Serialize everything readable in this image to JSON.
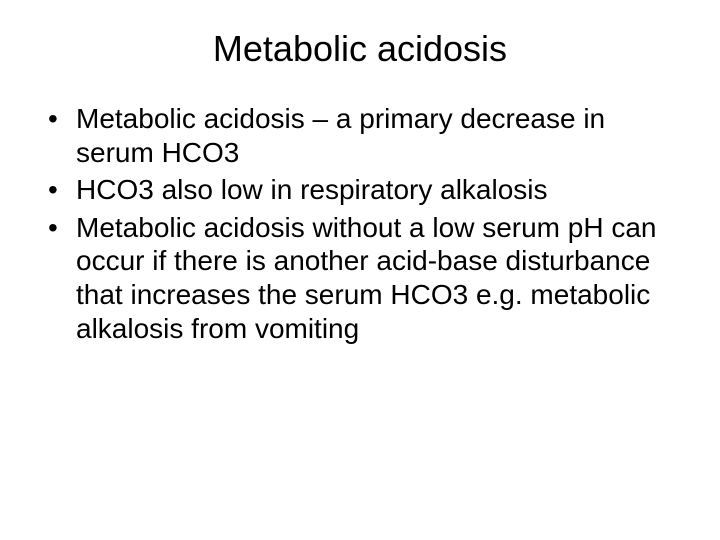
{
  "slide": {
    "title": "Metabolic acidosis",
    "bullets": [
      "Metabolic acidosis – a primary decrease in serum HCO3",
      "HCO3 also low in respiratory alkalosis",
      "Metabolic acidosis without a low serum pH can occur if there is another acid-base disturbance that increases the serum HCO3 e.g. metabolic alkalosis from vomiting"
    ],
    "background_color": "#ffffff",
    "text_color": "#000000",
    "title_fontsize": 36,
    "body_fontsize": 28,
    "font_family": "Arial"
  }
}
